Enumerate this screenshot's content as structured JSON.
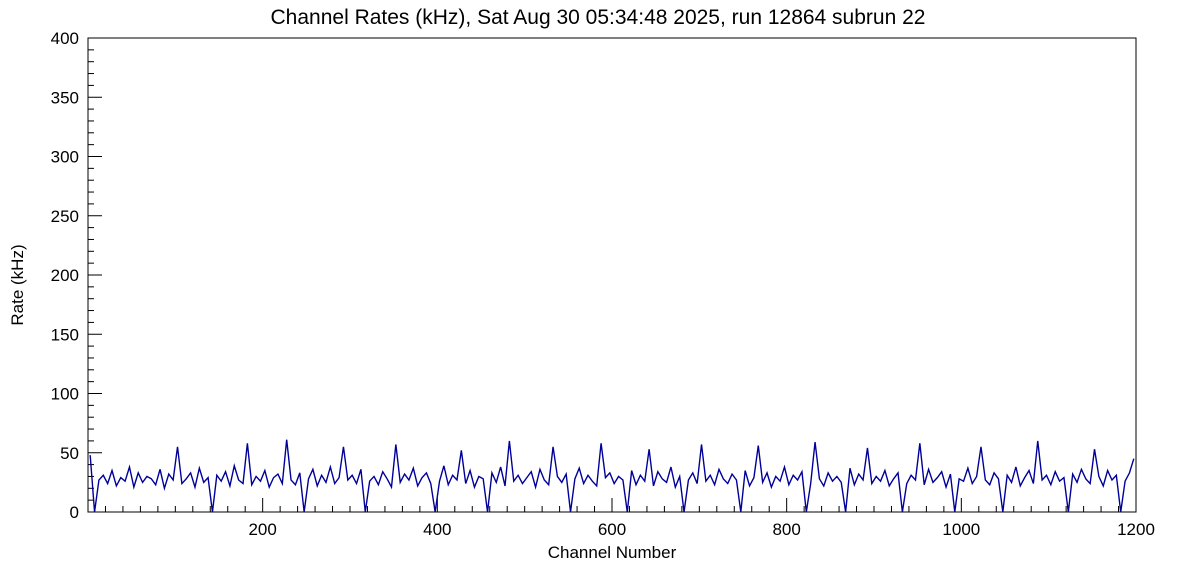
{
  "chart_data": {
    "type": "line",
    "title": "Channel Rates (kHz), Sat Aug 30 05:34:48 2025, run 12864 subrun 22",
    "xlabel": "Channel Number",
    "ylabel": "Rate (kHz)",
    "xlim": [
      0,
      1200
    ],
    "ylim": [
      0,
      400
    ],
    "x_major_ticks": [
      200,
      400,
      600,
      800,
      1000,
      1200
    ],
    "x_minor_step": 20,
    "y_major_ticks": [
      0,
      50,
      100,
      150,
      200,
      250,
      300,
      350,
      400
    ],
    "y_minor_step": 10,
    "line_color": "#000099",
    "frame_color": "#000000",
    "grid": "off",
    "legend": "none",
    "x_start": 2.5,
    "x_step": 5,
    "values": [
      48,
      0,
      27,
      31,
      24,
      35,
      22,
      29,
      26,
      38,
      21,
      33,
      25,
      30,
      28,
      23,
      36,
      20,
      32,
      27,
      55,
      24,
      28,
      33,
      21,
      37,
      25,
      29,
      0,
      31,
      26,
      34,
      22,
      39,
      27,
      24,
      58,
      23,
      30,
      26,
      35,
      21,
      29,
      32,
      24,
      61,
      27,
      23,
      33,
      0,
      28,
      36,
      22,
      31,
      25,
      38,
      24,
      29,
      55,
      27,
      31,
      24,
      36,
      0,
      26,
      30,
      23,
      34,
      28,
      21,
      57,
      25,
      32,
      27,
      37,
      22,
      29,
      33,
      24,
      0,
      26,
      39,
      23,
      31,
      27,
      52,
      24,
      35,
      21,
      30,
      28,
      0,
      33,
      25,
      38,
      22,
      60,
      26,
      31,
      24,
      29,
      34,
      21,
      36,
      27,
      23,
      55,
      30,
      25,
      32,
      0,
      28,
      37,
      24,
      31,
      26,
      22,
      58,
      29,
      33,
      24,
      30,
      27,
      0,
      35,
      23,
      31,
      26,
      53,
      22,
      34,
      28,
      25,
      38,
      21,
      30,
      0,
      27,
      33,
      24,
      57,
      26,
      31,
      23,
      36,
      28,
      24,
      32,
      27,
      0,
      35,
      22,
      29,
      56,
      25,
      33,
      21,
      30,
      26,
      38,
      23,
      31,
      27,
      34,
      0,
      24,
      59,
      28,
      22,
      33,
      26,
      30,
      25,
      0,
      37,
      23,
      32,
      27,
      54,
      24,
      30,
      26,
      35,
      22,
      28,
      33,
      0,
      24,
      31,
      27,
      58,
      23,
      36,
      25,
      29,
      34,
      21,
      32,
      0,
      28,
      26,
      37,
      24,
      30,
      55,
      27,
      23,
      33,
      28,
      0,
      31,
      25,
      38,
      22,
      29,
      35,
      24,
      60,
      27,
      31,
      23,
      34,
      26,
      29,
      0,
      32,
      25,
      36,
      28,
      24,
      53,
      30,
      22,
      35,
      27,
      31,
      0,
      26,
      33,
      45
    ]
  }
}
